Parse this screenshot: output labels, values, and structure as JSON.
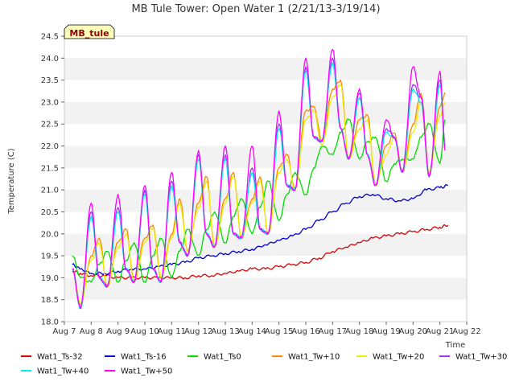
{
  "chart_data": {
    "type": "line",
    "title": "MB Tule Tower: Open Water 1 (2/21/13-3/19/14)",
    "xlabel": "Time",
    "ylabel": "Temperature (C)",
    "tag": "MB_tule",
    "xlim": [
      7,
      22
    ],
    "ylim": [
      18.0,
      24.5
    ],
    "x_ticks": [
      7,
      8,
      9,
      10,
      11,
      12,
      13,
      14,
      15,
      16,
      17,
      18,
      19,
      20,
      21,
      22
    ],
    "x_tick_labels": [
      "Aug 7",
      "Aug 8",
      "Aug 9",
      "Aug 10",
      "Aug 11",
      "Aug 12",
      "Aug 13",
      "Aug 14",
      "Aug 15",
      "Aug 16",
      "Aug 17",
      "Aug 18",
      "Aug 19",
      "Aug 20",
      "Aug 21",
      "Aug 22"
    ],
    "y_ticks": [
      18.0,
      18.5,
      19.0,
      19.5,
      20.0,
      20.5,
      21.0,
      21.5,
      22.0,
      22.5,
      23.0,
      23.5,
      24.0,
      24.5
    ],
    "y_tick_labels": [
      "18.0",
      "18.5",
      "19.0",
      "19.5",
      "20.0",
      "20.5",
      "21.0",
      "21.5",
      "22.0",
      "22.5",
      "23.0",
      "23.5",
      "24.0",
      "24.5"
    ],
    "grid": "horizontal bands",
    "legend_position": "bottom",
    "series": [
      {
        "name": "Wat1_Ts-32",
        "color": "#dd0000",
        "x": [
          7.3,
          7.6,
          8.0,
          8.5,
          9.0,
          9.5,
          10.0,
          10.5,
          11.0,
          11.5,
          12.0,
          12.5,
          13.0,
          13.5,
          14.0,
          14.5,
          15.0,
          15.5,
          16.0,
          16.5,
          17.0,
          17.5,
          18.0,
          18.5,
          19.0,
          19.5,
          20.0,
          20.5,
          21.0,
          21.3
        ],
        "y": [
          19.15,
          19.1,
          19.05,
          19.05,
          19.0,
          19.0,
          19.0,
          19.0,
          19.0,
          19.0,
          19.05,
          19.05,
          19.1,
          19.15,
          19.2,
          19.2,
          19.25,
          19.3,
          19.35,
          19.45,
          19.6,
          19.7,
          19.8,
          19.9,
          19.95,
          20.0,
          20.05,
          20.1,
          20.15,
          20.2
        ]
      },
      {
        "name": "Wat1_Ts-16",
        "color": "#0000cc",
        "x": [
          7.3,
          7.6,
          8.0,
          8.5,
          9.0,
          9.5,
          10.0,
          10.5,
          11.0,
          11.5,
          12.0,
          12.5,
          13.0,
          13.5,
          14.0,
          14.5,
          15.0,
          15.5,
          16.0,
          16.5,
          17.0,
          17.5,
          18.0,
          18.5,
          19.0,
          19.5,
          20.0,
          20.5,
          21.0,
          21.3
        ],
        "y": [
          19.3,
          19.2,
          19.1,
          19.1,
          19.15,
          19.2,
          19.2,
          19.25,
          19.3,
          19.35,
          19.45,
          19.5,
          19.55,
          19.6,
          19.65,
          19.75,
          19.85,
          19.95,
          20.1,
          20.3,
          20.5,
          20.7,
          20.85,
          20.9,
          20.8,
          20.75,
          20.8,
          21.0,
          21.05,
          21.1
        ]
      },
      {
        "name": "Wat1_Ts0",
        "color": "#00dd00",
        "x": [
          7.3,
          7.6,
          8.0,
          8.3,
          8.6,
          9.0,
          9.3,
          9.6,
          10.0,
          10.3,
          10.6,
          11.0,
          11.3,
          11.6,
          12.0,
          12.3,
          12.6,
          13.0,
          13.3,
          13.6,
          14.0,
          14.3,
          14.6,
          15.0,
          15.3,
          15.6,
          16.0,
          16.3,
          16.6,
          17.0,
          17.3,
          17.6,
          18.0,
          18.3,
          18.6,
          19.0,
          19.3,
          19.6,
          20.0,
          20.3,
          20.6,
          21.0,
          21.2
        ],
        "y": [
          19.5,
          19.0,
          18.9,
          19.3,
          19.6,
          18.9,
          19.4,
          19.8,
          18.9,
          19.5,
          19.9,
          19.0,
          19.6,
          20.1,
          19.5,
          20.1,
          20.5,
          19.8,
          20.4,
          20.8,
          20.0,
          20.6,
          21.2,
          20.3,
          20.9,
          21.4,
          20.9,
          21.5,
          22.0,
          21.8,
          22.3,
          22.6,
          21.7,
          22.1,
          22.2,
          21.2,
          21.6,
          21.7,
          21.7,
          22.2,
          22.5,
          21.6,
          22.6
        ]
      },
      {
        "name": "Wat1_Tw+10",
        "color": "#ff8800",
        "x": [
          7.3,
          7.6,
          8.0,
          8.3,
          8.6,
          9.0,
          9.3,
          9.6,
          10.0,
          10.3,
          10.6,
          11.0,
          11.3,
          11.6,
          12.0,
          12.3,
          12.6,
          13.0,
          13.3,
          13.6,
          14.0,
          14.3,
          14.6,
          15.0,
          15.3,
          15.6,
          16.0,
          16.3,
          16.6,
          17.0,
          17.3,
          17.6,
          18.0,
          18.3,
          18.6,
          19.0,
          19.3,
          19.6,
          20.0,
          20.3,
          20.6,
          21.0,
          21.2
        ],
        "y": [
          19.2,
          18.4,
          19.5,
          19.9,
          18.8,
          19.8,
          20.1,
          18.9,
          19.9,
          20.2,
          19.0,
          20.0,
          20.8,
          19.6,
          20.7,
          21.3,
          19.7,
          20.8,
          21.4,
          19.9,
          20.8,
          21.3,
          20.0,
          21.5,
          21.8,
          21.0,
          22.8,
          22.9,
          22.1,
          23.3,
          23.5,
          21.7,
          22.6,
          22.7,
          21.1,
          22.0,
          22.3,
          21.4,
          22.5,
          23.2,
          21.4,
          22.9,
          23.2
        ]
      },
      {
        "name": "Wat1_Tw+20",
        "color": "#eeee00",
        "x": [
          7.3,
          7.6,
          8.0,
          8.3,
          8.6,
          9.0,
          9.3,
          9.6,
          10.0,
          10.3,
          10.6,
          11.0,
          11.3,
          11.6,
          12.0,
          12.3,
          12.6,
          13.0,
          13.3,
          13.6,
          14.0,
          14.3,
          14.6,
          15.0,
          15.3,
          15.6,
          16.0,
          16.3,
          16.6,
          17.0,
          17.3,
          17.6,
          18.0,
          18.3,
          18.6,
          19.0,
          19.3,
          19.6,
          20.0,
          20.3,
          20.6,
          21.0,
          21.2
        ],
        "y": [
          19.2,
          18.4,
          19.4,
          19.8,
          18.8,
          19.7,
          20.0,
          18.9,
          19.8,
          20.1,
          19.0,
          19.9,
          20.7,
          19.6,
          20.6,
          21.2,
          19.7,
          20.7,
          21.3,
          19.9,
          20.7,
          21.2,
          20.0,
          21.4,
          21.7,
          21.0,
          22.6,
          22.8,
          22.0,
          23.1,
          23.4,
          21.7,
          22.4,
          22.6,
          21.1,
          21.8,
          22.2,
          21.4,
          22.3,
          23.0,
          21.4,
          22.7,
          23.0
        ]
      },
      {
        "name": "Wat1_Tw+30",
        "color": "#9933ff",
        "x": [
          7.3,
          7.6,
          8.0,
          8.3,
          8.6,
          9.0,
          9.3,
          9.6,
          10.0,
          10.3,
          10.6,
          11.0,
          11.3,
          11.6,
          12.0,
          12.3,
          12.6,
          13.0,
          13.3,
          13.6,
          14.0,
          14.3,
          14.6,
          15.0,
          15.3,
          15.6,
          16.0,
          16.3,
          16.6,
          17.0,
          17.3,
          17.6,
          18.0,
          18.3,
          18.6,
          19.0,
          19.3,
          19.6,
          20.0,
          20.3,
          20.6,
          21.0,
          21.2
        ],
        "y": [
          19.2,
          18.3,
          20.5,
          19.0,
          18.8,
          20.6,
          19.2,
          18.9,
          21.0,
          19.2,
          18.9,
          21.2,
          19.8,
          19.5,
          21.8,
          20.0,
          19.7,
          21.8,
          20.0,
          19.9,
          21.5,
          20.1,
          20.0,
          22.5,
          21.1,
          21.0,
          23.8,
          22.2,
          22.1,
          24.0,
          22.4,
          21.7,
          23.2,
          21.8,
          21.1,
          22.4,
          22.2,
          21.4,
          23.4,
          23.1,
          21.3,
          23.5,
          22.0
        ]
      },
      {
        "name": "Wat1_Tw+40",
        "color": "#00eeee",
        "x": [
          7.3,
          7.6,
          8.0,
          8.3,
          8.6,
          9.0,
          9.3,
          9.6,
          10.0,
          10.3,
          10.6,
          11.0,
          11.3,
          11.6,
          12.0,
          12.3,
          12.6,
          13.0,
          13.3,
          13.6,
          14.0,
          14.3,
          14.6,
          15.0,
          15.3,
          15.6,
          16.0,
          16.3,
          16.6,
          17.0,
          17.3,
          17.6,
          18.0,
          18.3,
          18.6,
          19.0,
          19.3,
          19.6,
          20.0,
          20.3,
          20.6,
          21.0,
          21.2
        ],
        "y": [
          19.2,
          18.3,
          20.4,
          19.0,
          18.8,
          20.5,
          19.2,
          18.9,
          20.9,
          19.2,
          18.9,
          21.1,
          19.8,
          19.5,
          21.7,
          20.0,
          19.7,
          21.7,
          20.0,
          19.9,
          21.4,
          20.1,
          20.0,
          22.4,
          21.1,
          21.0,
          23.7,
          22.2,
          22.1,
          23.9,
          22.4,
          21.7,
          23.1,
          21.8,
          21.1,
          22.3,
          22.2,
          21.4,
          23.3,
          23.0,
          21.3,
          23.4,
          22.0
        ]
      },
      {
        "name": "Wat1_Tw+50",
        "color": "#ff00ff",
        "x": [
          7.3,
          7.6,
          8.0,
          8.3,
          8.6,
          9.0,
          9.3,
          9.6,
          10.0,
          10.3,
          10.6,
          11.0,
          11.3,
          11.6,
          12.0,
          12.3,
          12.6,
          13.0,
          13.3,
          13.6,
          14.0,
          14.3,
          14.6,
          15.0,
          15.3,
          15.6,
          16.0,
          16.3,
          16.6,
          17.0,
          17.3,
          17.6,
          18.0,
          18.3,
          18.6,
          19.0,
          19.3,
          19.6,
          20.0,
          20.3,
          20.6,
          21.0,
          21.2
        ],
        "y": [
          19.2,
          18.3,
          20.7,
          19.0,
          18.8,
          20.9,
          19.2,
          18.9,
          21.1,
          19.2,
          18.9,
          21.4,
          19.8,
          19.5,
          21.9,
          20.0,
          19.7,
          22.0,
          20.0,
          19.9,
          22.0,
          20.1,
          20.0,
          22.8,
          21.1,
          21.0,
          24.0,
          22.2,
          22.1,
          24.2,
          22.4,
          21.7,
          23.3,
          21.8,
          21.1,
          22.6,
          22.2,
          21.4,
          23.8,
          23.1,
          21.3,
          23.7,
          21.9
        ]
      }
    ]
  }
}
